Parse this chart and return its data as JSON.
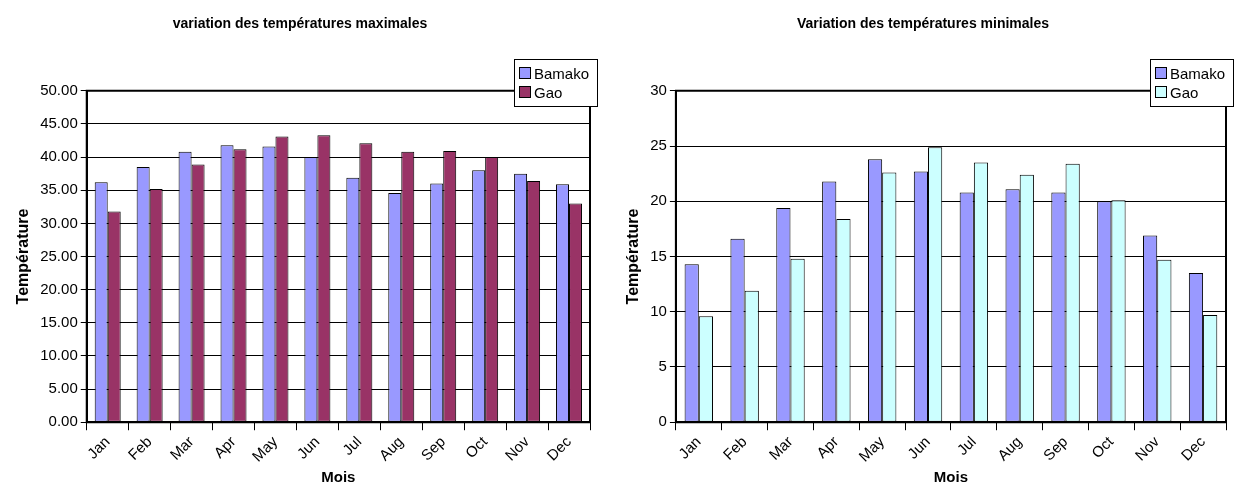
{
  "chart_data": [
    {
      "type": "bar",
      "title": "variation des températures maximales",
      "xlabel": "Mois",
      "ylabel": "Température",
      "categories": [
        "Jan",
        "Feb",
        "Mar",
        "Apr",
        "May",
        "Jun",
        "Jul",
        "Aug",
        "Sep",
        "Oct",
        "Nov",
        "Dec"
      ],
      "series": [
        {
          "name": "Bamako",
          "color": "#9999ff",
          "values": [
            36.2,
            38.5,
            40.8,
            41.8,
            41.6,
            40.0,
            36.9,
            34.6,
            36.0,
            38.0,
            37.5,
            35.9
          ]
        },
        {
          "name": "Gao",
          "color": "#993366",
          "values": [
            31.8,
            35.2,
            38.9,
            41.2,
            43.1,
            43.3,
            42.1,
            40.8,
            40.9,
            40.0,
            36.4,
            33.0
          ]
        }
      ],
      "ylim": [
        0,
        50
      ],
      "yticks": [
        {
          "value": 0,
          "label": "0.00"
        },
        {
          "value": 5,
          "label": "5.00"
        },
        {
          "value": 10,
          "label": "10.00"
        },
        {
          "value": 15,
          "label": "15.00"
        },
        {
          "value": 20,
          "label": "20.00"
        },
        {
          "value": 25,
          "label": "25.00"
        },
        {
          "value": 30,
          "label": "30.00"
        },
        {
          "value": 35,
          "label": "35.00"
        },
        {
          "value": 40,
          "label": "40.00"
        },
        {
          "value": 45,
          "label": "45.00"
        },
        {
          "value": 50,
          "label": "50.00"
        }
      ],
      "grid": "y",
      "legend": "top right"
    },
    {
      "type": "bar",
      "title": "Variation des températures minimales",
      "xlabel": "Mois",
      "ylabel": "Température",
      "categories": [
        "Jan",
        "Feb",
        "Mar",
        "Apr",
        "May",
        "Jun",
        "Jul",
        "Aug",
        "Sep",
        "Oct",
        "Nov",
        "Dec"
      ],
      "series": [
        {
          "name": "Bamako",
          "color": "#9999ff",
          "values": [
            14.3,
            16.6,
            19.4,
            21.8,
            23.8,
            22.7,
            20.8,
            21.1,
            20.8,
            20.0,
            16.9,
            13.5
          ]
        },
        {
          "name": "Gao",
          "color": "#ccffff",
          "values": [
            9.6,
            11.9,
            14.8,
            18.4,
            22.6,
            24.9,
            23.5,
            22.4,
            23.4,
            20.1,
            14.7,
            9.7
          ]
        }
      ],
      "ylim": [
        0,
        30
      ],
      "yticks": [
        0,
        5,
        10,
        15,
        20,
        25,
        30
      ],
      "grid": "y",
      "legend": "top right"
    }
  ]
}
